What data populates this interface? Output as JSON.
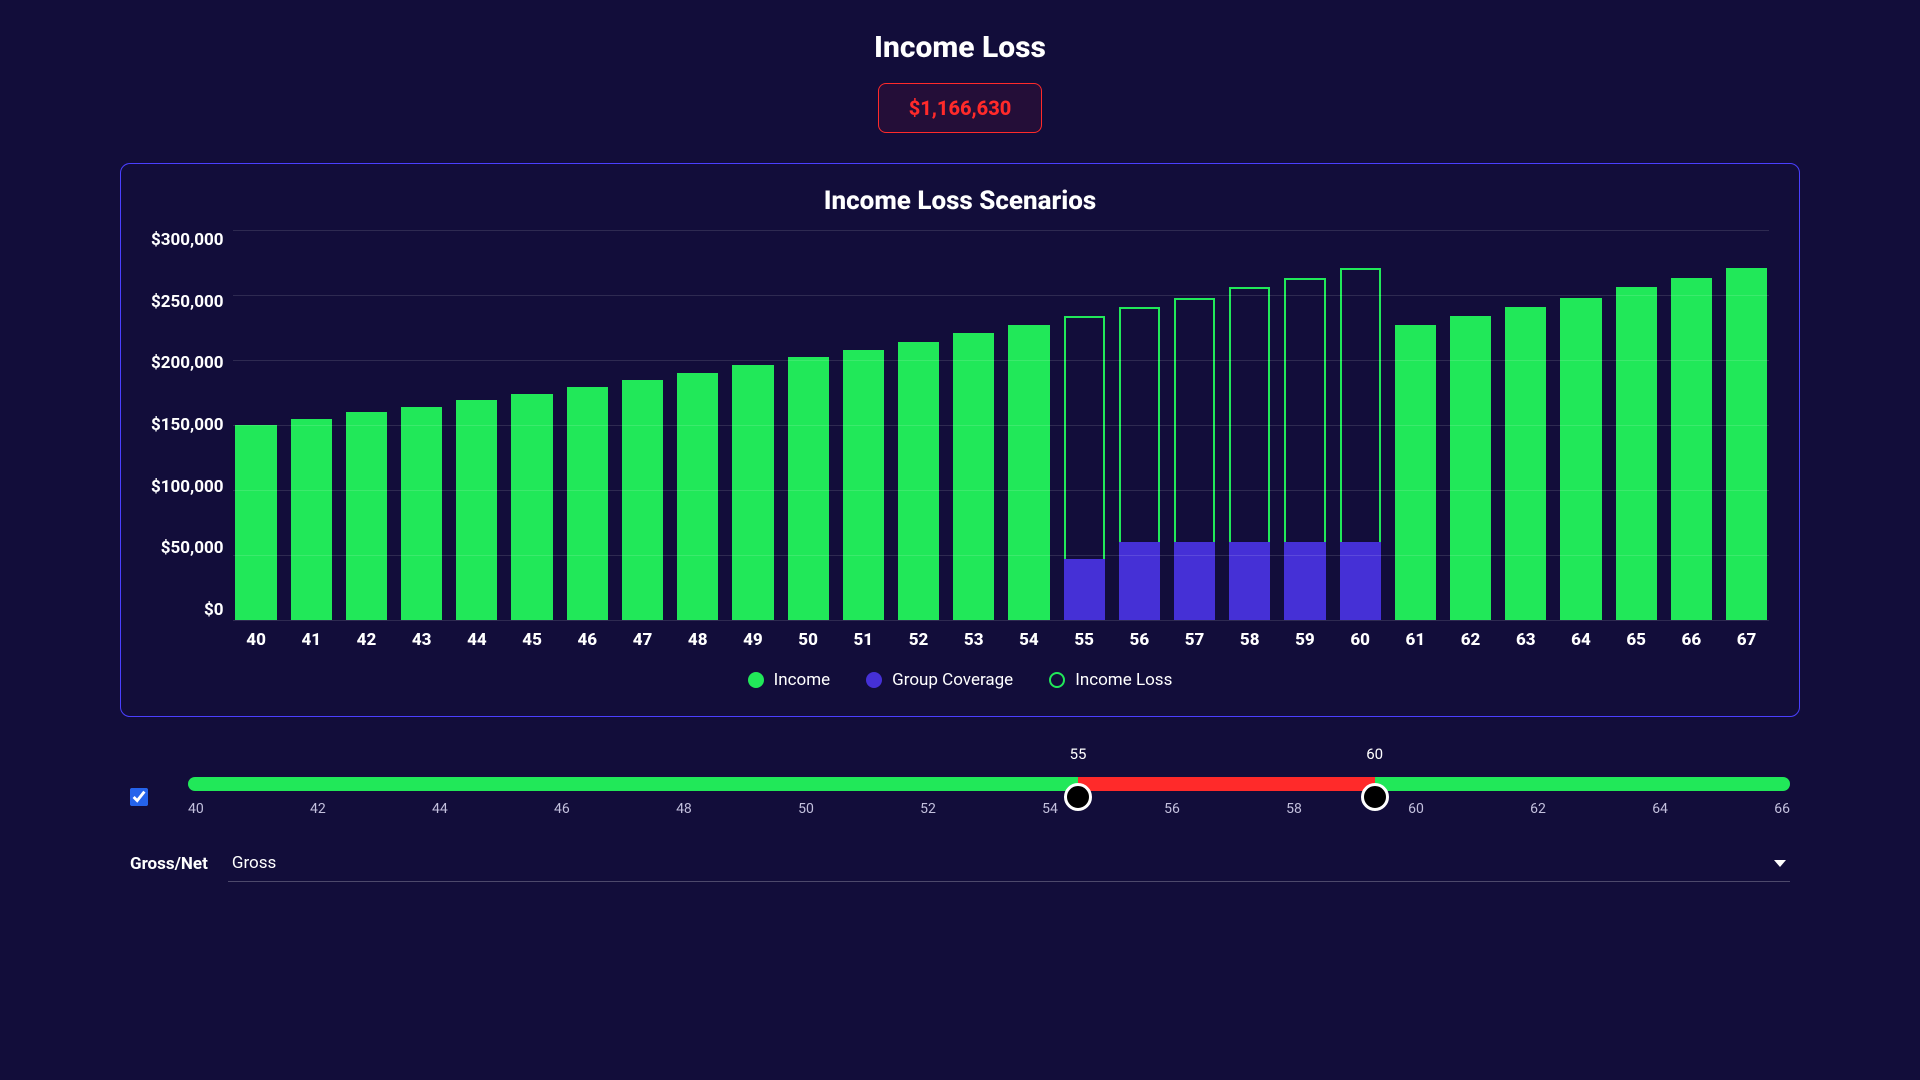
{
  "colors": {
    "background": "#120d3a",
    "card_border": "#4a3fff",
    "income": "#21e859",
    "group_coverage": "#4530d6",
    "loss_red": "#ff2a2a",
    "slider_green": "#21e859",
    "slider_red": "#ff2a2a",
    "grid": "rgba(255,255,255,0.12)",
    "text": "#ffffff"
  },
  "header": {
    "title": "Income Loss",
    "amount": "$1,166,630"
  },
  "chart": {
    "type": "bar",
    "title": "Income Loss Scenarios",
    "y_axis": {
      "min": 0,
      "max": 300000,
      "step": 50000,
      "labels": [
        "$300,000",
        "$250,000",
        "$200,000",
        "$150,000",
        "$100,000",
        "$50,000",
        "$0"
      ]
    },
    "x_axis": {
      "labels": [
        "40",
        "41",
        "42",
        "43",
        "44",
        "45",
        "46",
        "47",
        "48",
        "49",
        "50",
        "51",
        "52",
        "53",
        "54",
        "55",
        "56",
        "57",
        "58",
        "59",
        "60",
        "61",
        "62",
        "63",
        "64",
        "65",
        "66",
        "67"
      ]
    },
    "series": [
      {
        "age": 40,
        "income": 150000,
        "group": 0,
        "loss": 0
      },
      {
        "age": 41,
        "income": 155000,
        "group": 0,
        "loss": 0
      },
      {
        "age": 42,
        "income": 160000,
        "group": 0,
        "loss": 0
      },
      {
        "age": 43,
        "income": 164000,
        "group": 0,
        "loss": 0
      },
      {
        "age": 44,
        "income": 169000,
        "group": 0,
        "loss": 0
      },
      {
        "age": 45,
        "income": 174000,
        "group": 0,
        "loss": 0
      },
      {
        "age": 46,
        "income": 179000,
        "group": 0,
        "loss": 0
      },
      {
        "age": 47,
        "income": 185000,
        "group": 0,
        "loss": 0
      },
      {
        "age": 48,
        "income": 190000,
        "group": 0,
        "loss": 0
      },
      {
        "age": 49,
        "income": 196000,
        "group": 0,
        "loss": 0
      },
      {
        "age": 50,
        "income": 202000,
        "group": 0,
        "loss": 0
      },
      {
        "age": 51,
        "income": 208000,
        "group": 0,
        "loss": 0
      },
      {
        "age": 52,
        "income": 214000,
        "group": 0,
        "loss": 0
      },
      {
        "age": 53,
        "income": 221000,
        "group": 0,
        "loss": 0
      },
      {
        "age": 54,
        "income": 227000,
        "group": 0,
        "loss": 0
      },
      {
        "age": 55,
        "income": 0,
        "group": 47000,
        "loss": 234000
      },
      {
        "age": 56,
        "income": 0,
        "group": 60000,
        "loss": 241000
      },
      {
        "age": 57,
        "income": 0,
        "group": 60000,
        "loss": 248000
      },
      {
        "age": 58,
        "income": 0,
        "group": 60000,
        "loss": 256000
      },
      {
        "age": 59,
        "income": 0,
        "group": 60000,
        "loss": 263000
      },
      {
        "age": 60,
        "income": 0,
        "group": 60000,
        "loss": 271000
      },
      {
        "age": 61,
        "income": 227000,
        "group": 0,
        "loss": 0
      },
      {
        "age": 62,
        "income": 234000,
        "group": 0,
        "loss": 0
      },
      {
        "age": 63,
        "income": 241000,
        "group": 0,
        "loss": 0
      },
      {
        "age": 64,
        "income": 248000,
        "group": 0,
        "loss": 0
      },
      {
        "age": 65,
        "income": 256000,
        "group": 0,
        "loss": 0
      },
      {
        "age": 66,
        "income": 263000,
        "group": 0,
        "loss": 0
      },
      {
        "age": 67,
        "income": 271000,
        "group": 0,
        "loss": 0
      }
    ],
    "legend": [
      {
        "label": "Income",
        "style": "income"
      },
      {
        "label": "Group Coverage",
        "style": "group"
      },
      {
        "label": "Income Loss",
        "style": "loss"
      }
    ]
  },
  "slider": {
    "checkbox_checked": true,
    "min": 40,
    "max": 67,
    "low_value": 55,
    "high_value": 60,
    "low_label": "55",
    "high_label": "60",
    "tick_labels": [
      "40",
      "42",
      "44",
      "46",
      "48",
      "50",
      "52",
      "54",
      "56",
      "58",
      "60",
      "62",
      "64",
      "66"
    ]
  },
  "dropdown": {
    "label": "Gross/Net",
    "selected": "Gross"
  }
}
